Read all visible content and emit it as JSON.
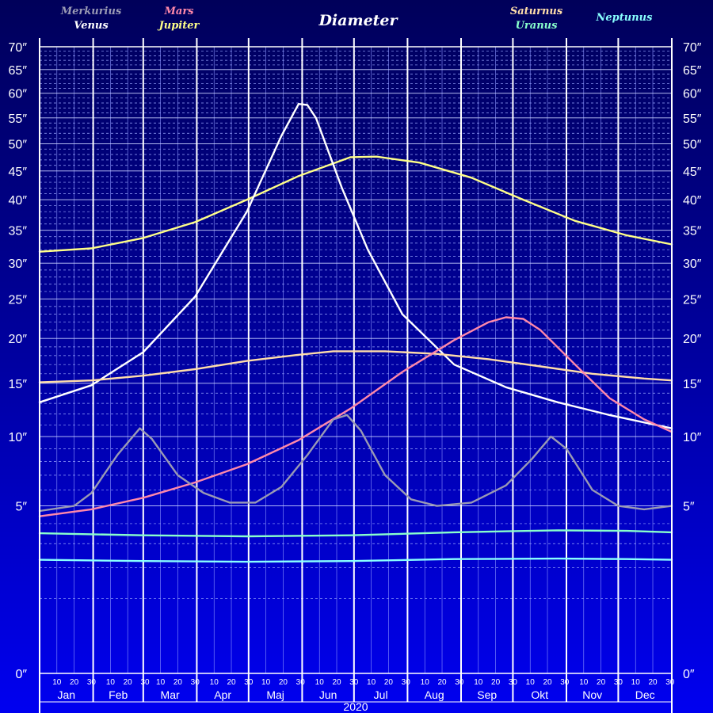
{
  "chart_data": {
    "type": "line",
    "title": "Diameter",
    "year": "2020",
    "x_unit": "day-of-year 2020",
    "y_scale": "sqrt",
    "ylim": [
      0,
      70
    ],
    "y_ticks": [
      {
        "v": 0,
        "label": "0″"
      },
      {
        "v": 5,
        "label": "5″"
      },
      {
        "v": 10,
        "label": "10″"
      },
      {
        "v": 15,
        "label": "15″"
      },
      {
        "v": 20,
        "label": "20″"
      },
      {
        "v": 25,
        "label": "25″"
      },
      {
        "v": 30,
        "label": "30″"
      },
      {
        "v": 35,
        "label": "35″"
      },
      {
        "v": 40,
        "label": "40″"
      },
      {
        "v": 45,
        "label": "45″"
      },
      {
        "v": 50,
        "label": "50″"
      },
      {
        "v": 55,
        "label": "55″"
      },
      {
        "v": 60,
        "label": "60″"
      },
      {
        "v": 65,
        "label": "65″"
      },
      {
        "v": 70,
        "label": "70″"
      }
    ],
    "months": [
      {
        "label": "Jan",
        "days": 31
      },
      {
        "label": "Feb",
        "days": 29
      },
      {
        "label": "Mar",
        "days": 31
      },
      {
        "label": "Apr",
        "days": 30
      },
      {
        "label": "Maj",
        "days": 31
      },
      {
        "label": "Jun",
        "days": 30
      },
      {
        "label": "Jul",
        "days": 31
      },
      {
        "label": "Aug",
        "days": 31
      },
      {
        "label": "Sep",
        "days": 30
      },
      {
        "label": "Okt",
        "days": 31
      },
      {
        "label": "Nov",
        "days": 30
      },
      {
        "label": "Dec",
        "days": 31
      }
    ],
    "day_ticks": [
      "10",
      "20",
      "30"
    ],
    "grid": true,
    "legend": [
      {
        "name": "Merkurius",
        "color": "#9a9ab4",
        "pos": "top-left-1"
      },
      {
        "name": "Venus",
        "color": "#ffffff",
        "pos": "top-left-2"
      },
      {
        "name": "Mars",
        "color": "#ff88aa",
        "pos": "top-left-3"
      },
      {
        "name": "Jupiter",
        "color": "#ffff88",
        "pos": "top-left-4"
      },
      {
        "name": "Saturnus",
        "color": "#ffddaa",
        "pos": "top-right-1"
      },
      {
        "name": "Uranus",
        "color": "#88ffcc",
        "pos": "top-right-2"
      },
      {
        "name": "Neptunus",
        "color": "#88ffff",
        "pos": "top-right-3"
      }
    ],
    "series": [
      {
        "name": "Jupiter",
        "color": "#ffff88",
        "points": [
          [
            0,
            31.7
          ],
          [
            30,
            32.2
          ],
          [
            60,
            33.8
          ],
          [
            90,
            36.3
          ],
          [
            120,
            40
          ],
          [
            150,
            44.1
          ],
          [
            180,
            47.5
          ],
          [
            195,
            47.6
          ],
          [
            220,
            46.5
          ],
          [
            250,
            43.8
          ],
          [
            280,
            40
          ],
          [
            310,
            36.5
          ],
          [
            340,
            34.2
          ],
          [
            366,
            32.8
          ]
        ]
      },
      {
        "name": "Venus",
        "color": "#ffffff",
        "points": [
          [
            0,
            13.1
          ],
          [
            30,
            14.8
          ],
          [
            60,
            18.4
          ],
          [
            90,
            25.3
          ],
          [
            120,
            38
          ],
          [
            140,
            51.5
          ],
          [
            150,
            57.8
          ],
          [
            155,
            57.6
          ],
          [
            160,
            55
          ],
          [
            175,
            42
          ],
          [
            190,
            32
          ],
          [
            210,
            23
          ],
          [
            240,
            17
          ],
          [
            270,
            14.6
          ],
          [
            300,
            13.1
          ],
          [
            330,
            11.9
          ],
          [
            366,
            10.7
          ]
        ]
      },
      {
        "name": "Saturnus",
        "color": "#ffddaa",
        "points": [
          [
            0,
            15.1
          ],
          [
            30,
            15.3
          ],
          [
            60,
            15.8
          ],
          [
            90,
            16.5
          ],
          [
            120,
            17.4
          ],
          [
            150,
            18.1
          ],
          [
            170,
            18.5
          ],
          [
            200,
            18.5
          ],
          [
            230,
            18.2
          ],
          [
            260,
            17.6
          ],
          [
            290,
            16.8
          ],
          [
            320,
            16
          ],
          [
            350,
            15.5
          ],
          [
            366,
            15.3
          ]
        ]
      },
      {
        "name": "Mars",
        "color": "#ff88aa",
        "points": [
          [
            0,
            4.4
          ],
          [
            30,
            4.8
          ],
          [
            60,
            5.5
          ],
          [
            90,
            6.5
          ],
          [
            120,
            7.8
          ],
          [
            150,
            9.7
          ],
          [
            180,
            12.5
          ],
          [
            210,
            16.2
          ],
          [
            240,
            19.8
          ],
          [
            260,
            22
          ],
          [
            270,
            22.6
          ],
          [
            280,
            22.4
          ],
          [
            290,
            21
          ],
          [
            310,
            17
          ],
          [
            330,
            13.5
          ],
          [
            350,
            11.5
          ],
          [
            366,
            10.4
          ]
        ]
      },
      {
        "name": "Merkurius",
        "color": "#9a9ab4",
        "points": [
          [
            0,
            4.7
          ],
          [
            20,
            5
          ],
          [
            30,
            5.8
          ],
          [
            45,
            8.5
          ],
          [
            58,
            10.7
          ],
          [
            65,
            9.8
          ],
          [
            80,
            7
          ],
          [
            95,
            5.8
          ],
          [
            110,
            5.2
          ],
          [
            125,
            5.2
          ],
          [
            140,
            6.2
          ],
          [
            155,
            8.5
          ],
          [
            170,
            11.5
          ],
          [
            178,
            11.9
          ],
          [
            186,
            10.5
          ],
          [
            200,
            7
          ],
          [
            215,
            5.4
          ],
          [
            230,
            5
          ],
          [
            250,
            5.2
          ],
          [
            270,
            6.3
          ],
          [
            285,
            8.2
          ],
          [
            296,
            10
          ],
          [
            305,
            9
          ],
          [
            320,
            6
          ],
          [
            335,
            5
          ],
          [
            350,
            4.8
          ],
          [
            366,
            5
          ]
        ]
      },
      {
        "name": "Uranus",
        "color": "#88ffcc",
        "points": [
          [
            0,
            3.5
          ],
          [
            60,
            3.4
          ],
          [
            120,
            3.35
          ],
          [
            180,
            3.4
          ],
          [
            240,
            3.55
          ],
          [
            300,
            3.65
          ],
          [
            340,
            3.62
          ],
          [
            366,
            3.55
          ]
        ]
      },
      {
        "name": "Neptunus",
        "color": "#88ffff",
        "points": [
          [
            0,
            2.3
          ],
          [
            60,
            2.25
          ],
          [
            120,
            2.22
          ],
          [
            180,
            2.25
          ],
          [
            240,
            2.33
          ],
          [
            300,
            2.35
          ],
          [
            340,
            2.33
          ],
          [
            366,
            2.3
          ]
        ]
      }
    ]
  }
}
